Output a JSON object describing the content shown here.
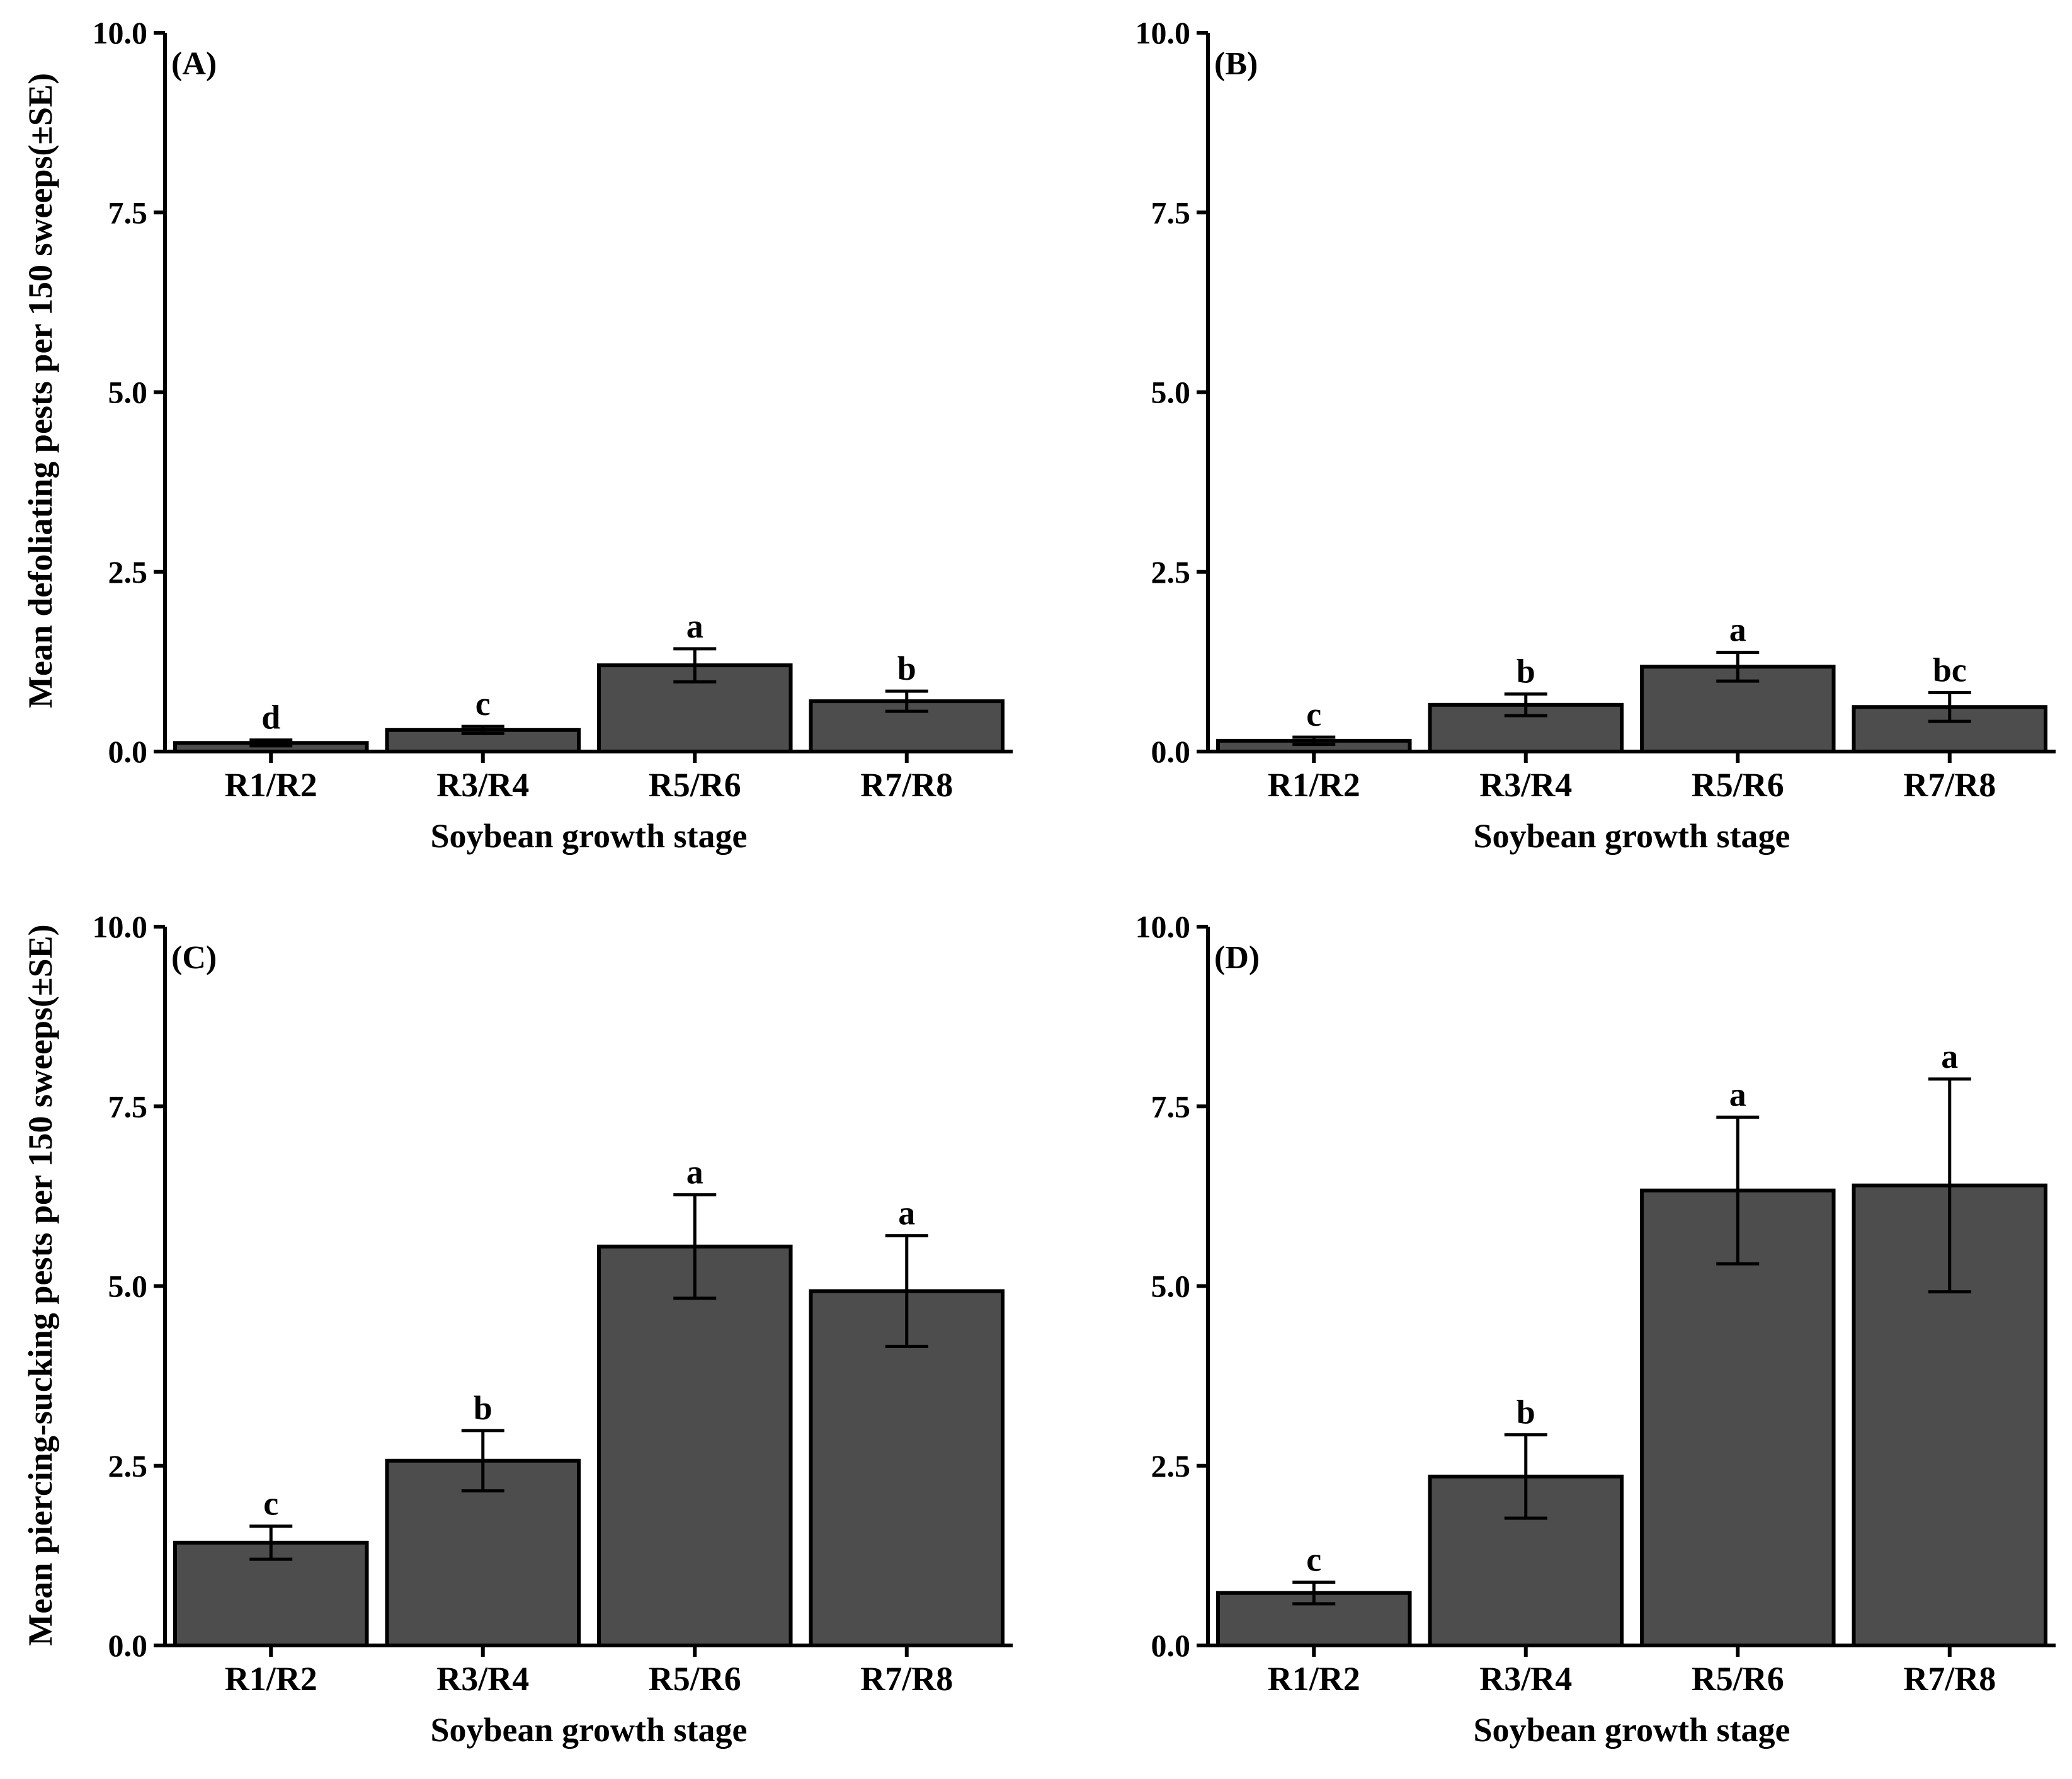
{
  "figure": {
    "y_axis_titles": {
      "top": "Mean defoliating pests per 150 sweeps(±SE)",
      "bottom": "Mean piercing-sucking pests per 150 sweeps(±SE)"
    }
  },
  "chart_data": [
    {
      "type": "bar",
      "panel_label": "(A)",
      "categories": [
        "R1/R2",
        "R3/R4",
        "R5/R6",
        "R7/R8"
      ],
      "values": [
        0.12,
        0.3,
        1.2,
        0.7
      ],
      "errors": [
        0.04,
        0.05,
        0.23,
        0.14
      ],
      "letters": [
        "d",
        "c",
        "a",
        "b"
      ],
      "xlabel": "Soybean growth stage",
      "ylabel": "Mean defoliating pests per 150 sweeps(±SE)",
      "yticks": [
        "0.0",
        "2.5",
        "5.0",
        "7.5",
        "10.0"
      ],
      "ylim": [
        0,
        10
      ]
    },
    {
      "type": "bar",
      "panel_label": "(B)",
      "categories": [
        "R1/R2",
        "R3/R4",
        "R5/R6",
        "R7/R8"
      ],
      "values": [
        0.15,
        0.65,
        1.18,
        0.62
      ],
      "errors": [
        0.05,
        0.15,
        0.2,
        0.2
      ],
      "letters": [
        "c",
        "b",
        "a",
        "bc"
      ],
      "xlabel": "Soybean growth stage",
      "ylabel": "",
      "yticks": [
        "0.0",
        "2.5",
        "5.0",
        "7.5",
        "10.0"
      ],
      "ylim": [
        0,
        10
      ]
    },
    {
      "type": "bar",
      "panel_label": "(C)",
      "categories": [
        "R1/R2",
        "R3/R4",
        "R5/R6",
        "R7/R8"
      ],
      "values": [
        1.43,
        2.57,
        5.55,
        4.93
      ],
      "errors": [
        0.23,
        0.42,
        0.72,
        0.77
      ],
      "letters": [
        "c",
        "b",
        "a",
        "a"
      ],
      "xlabel": "Soybean growth stage",
      "ylabel": "Mean piercing-sucking pests per 150 sweeps(±SE)",
      "yticks": [
        "0.0",
        "2.5",
        "5.0",
        "7.5",
        "10.0"
      ],
      "ylim": [
        0,
        10
      ]
    },
    {
      "type": "bar",
      "panel_label": "(D)",
      "categories": [
        "R1/R2",
        "R3/R4",
        "R5/R6",
        "R7/R8"
      ],
      "values": [
        0.73,
        2.35,
        6.33,
        6.4
      ],
      "errors": [
        0.15,
        0.58,
        1.02,
        1.48
      ],
      "letters": [
        "c",
        "b",
        "a",
        "a"
      ],
      "xlabel": "Soybean growth stage",
      "ylabel": "",
      "yticks": [
        "0.0",
        "2.5",
        "5.0",
        "7.5",
        "10.0"
      ],
      "ylim": [
        0,
        10
      ]
    }
  ]
}
